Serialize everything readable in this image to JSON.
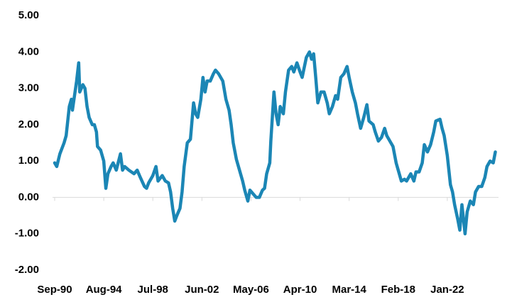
{
  "chart_data": {
    "type": "line",
    "x": [
      "1990-09",
      "1990-11",
      "1991-02",
      "1991-06",
      "1991-08",
      "1991-11",
      "1992-01",
      "1992-02",
      "1992-04",
      "1992-06",
      "1992-08",
      "1992-09",
      "1992-12",
      "1993-02",
      "1993-04",
      "1993-06",
      "1993-09",
      "1993-11",
      "1994-01",
      "1994-02",
      "1994-05",
      "1994-08",
      "1994-10",
      "1994-12",
      "1995-03",
      "1995-05",
      "1995-08",
      "1995-12",
      "1996-02",
      "1996-04",
      "1996-08",
      "1997-01",
      "1997-04",
      "1997-07",
      "1997-11",
      "1998-01",
      "1998-03",
      "1998-07",
      "1998-10",
      "1998-12",
      "1999-04",
      "1999-07",
      "1999-10",
      "1999-12",
      "2000-02",
      "2000-04",
      "2000-06",
      "2000-09",
      "2000-11",
      "2001-01",
      "2001-04",
      "2001-07",
      "2001-10",
      "2001-12",
      "2002-02",
      "2002-05",
      "2002-07",
      "2002-09",
      "2002-11",
      "2003-02",
      "2003-05",
      "2003-07",
      "2003-10",
      "2004-02",
      "2004-05",
      "2004-08",
      "2004-10",
      "2004-12",
      "2005-03",
      "2005-06",
      "2005-09",
      "2005-11",
      "2006-02",
      "2006-04",
      "2006-07",
      "2006-10",
      "2007-01",
      "2007-04",
      "2007-06",
      "2007-08",
      "2007-11",
      "2007-12",
      "2008-03",
      "2008-05",
      "2008-07",
      "2008-09",
      "2008-12",
      "2009-02",
      "2009-05",
      "2009-08",
      "2009-10",
      "2010-01",
      "2010-04",
      "2010-06",
      "2010-10",
      "2011-01",
      "2011-03",
      "2011-05",
      "2011-07",
      "2011-09",
      "2011-12",
      "2012-03",
      "2012-06",
      "2012-08",
      "2012-11",
      "2013-02",
      "2013-04",
      "2013-07",
      "2013-10",
      "2014-01",
      "2014-03",
      "2014-06",
      "2014-09",
      "2014-11",
      "2015-02",
      "2015-05",
      "2015-08",
      "2015-10",
      "2016-02",
      "2016-04",
      "2016-07",
      "2016-10",
      "2017-01",
      "2017-03",
      "2017-06",
      "2017-09",
      "2017-12",
      "2018-02",
      "2018-05",
      "2018-08",
      "2018-10",
      "2019-02",
      "2019-05",
      "2019-07",
      "2019-10",
      "2020-01",
      "2020-03",
      "2020-06",
      "2020-09",
      "2020-12",
      "2021-02",
      "2021-06",
      "2021-08",
      "2021-10",
      "2022-01",
      "2022-04",
      "2022-06",
      "2022-08",
      "2022-11",
      "2023-01",
      "2023-03",
      "2023-06",
      "2023-08",
      "2023-11",
      "2024-02",
      "2024-04",
      "2024-07",
      "2024-10",
      "2025-01",
      "2025-03",
      "2025-06",
      "2025-09",
      "2025-11"
    ],
    "values": [
      0.95,
      0.85,
      1.2,
      1.5,
      1.7,
      2.5,
      2.7,
      2.4,
      2.8,
      3.2,
      3.7,
      2.9,
      3.1,
      3.0,
      2.5,
      2.2,
      2.0,
      2.0,
      1.8,
      1.4,
      1.3,
      1.0,
      0.25,
      0.65,
      0.85,
      0.95,
      0.75,
      1.2,
      0.75,
      0.85,
      0.75,
      0.65,
      0.75,
      0.55,
      0.3,
      0.25,
      0.4,
      0.6,
      0.85,
      0.45,
      0.6,
      0.45,
      0.4,
      0.15,
      -0.3,
      -0.65,
      -0.5,
      -0.3,
      0.15,
      0.85,
      1.5,
      1.6,
      2.6,
      2.3,
      2.2,
      2.7,
      3.3,
      2.9,
      3.2,
      3.2,
      3.4,
      3.5,
      3.4,
      3.2,
      2.7,
      2.4,
      2.0,
      1.5,
      1.05,
      0.75,
      0.45,
      0.2,
      -0.1,
      0.2,
      0.1,
      0,
      0,
      0.2,
      0.25,
      0.65,
      0.95,
      1.55,
      2.9,
      2.3,
      2.0,
      2.5,
      2.3,
      2.9,
      3.5,
      3.6,
      3.45,
      3.7,
      3.45,
      3.3,
      3.85,
      4.0,
      3.8,
      3.95,
      3.3,
      2.6,
      2.9,
      2.9,
      2.6,
      2.3,
      2.5,
      2.8,
      2.7,
      3.3,
      3.4,
      3.6,
      3.3,
      2.9,
      2.6,
      2.3,
      1.9,
      2.2,
      2.55,
      2.1,
      2.0,
      1.8,
      1.55,
      1.65,
      1.9,
      1.7,
      1.55,
      1.4,
      0.95,
      0.75,
      0.45,
      0.5,
      0.45,
      0.65,
      0.45,
      0.7,
      0.7,
      0.95,
      1.45,
      1.25,
      1.45,
      1.8,
      2.1,
      2.15,
      1.9,
      1.7,
      1.15,
      0.35,
      0.15,
      -0.2,
      -0.6,
      -0.9,
      -0.2,
      -1.0,
      -0.4,
      -0.1,
      -0.2,
      0.15,
      0.3,
      0.3,
      0.55,
      0.85,
      1.0,
      0.95,
      1.25
    ],
    "color": "#1b86b5",
    "xlim": [
      "1990-09",
      "2025-12"
    ],
    "xticks": [
      {
        "value": "1990-09",
        "label": "Sep-90"
      },
      {
        "value": "1994-08",
        "label": "Aug-94"
      },
      {
        "value": "1998-07",
        "label": "Jul-98"
      },
      {
        "value": "2002-06",
        "label": "Jun-02"
      },
      {
        "value": "2006-05",
        "label": "May-06"
      },
      {
        "value": "2010-04",
        "label": "Apr-10"
      },
      {
        "value": "2014-03",
        "label": "Mar-14"
      },
      {
        "value": "2018-02",
        "label": "Feb-18"
      },
      {
        "value": "2022-01",
        "label": "Jan-22"
      }
    ],
    "ylim": [
      -2,
      5
    ],
    "yticks": [
      {
        "value": -2,
        "label": "-2.00"
      },
      {
        "value": -1,
        "label": "-1.00"
      },
      {
        "value": 0,
        "label": "0.00"
      },
      {
        "value": 1,
        "label": "1.00"
      },
      {
        "value": 2,
        "label": "2.00"
      },
      {
        "value": 3,
        "label": "3.00"
      },
      {
        "value": 4,
        "label": "4.00"
      },
      {
        "value": 5,
        "label": "5.00"
      }
    ],
    "grid": false
  }
}
